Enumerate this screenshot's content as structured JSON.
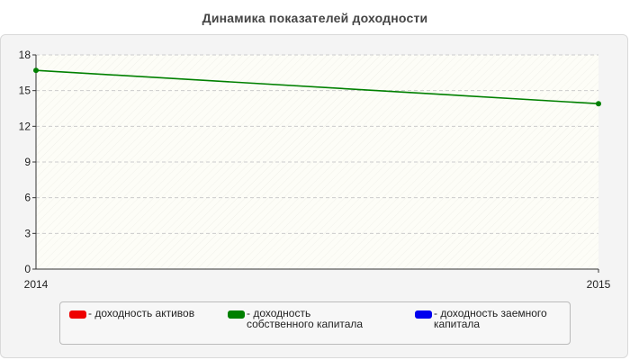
{
  "title": "Динамика показателей доходности",
  "legend": [
    {
      "label": "- доходность активов",
      "color": "#ee0000"
    },
    {
      "label": "- доходность собственного капитала",
      "color": "#008000"
    },
    {
      "label": "- доходность заемного капитала",
      "color": "#0000ee"
    }
  ],
  "chart_data": {
    "type": "line",
    "title": "Динамика показателей доходности",
    "x": [
      "2014",
      "2015"
    ],
    "series": [
      {
        "name": "доходность собственного капитала",
        "color": "#008000",
        "values": [
          16.7,
          13.9
        ]
      }
    ],
    "yticks": [
      0,
      3,
      6,
      9,
      12,
      15,
      18
    ],
    "ylim": [
      0,
      18
    ],
    "grid": true,
    "legend_position": "bottom",
    "xlabel": "",
    "ylabel": ""
  }
}
